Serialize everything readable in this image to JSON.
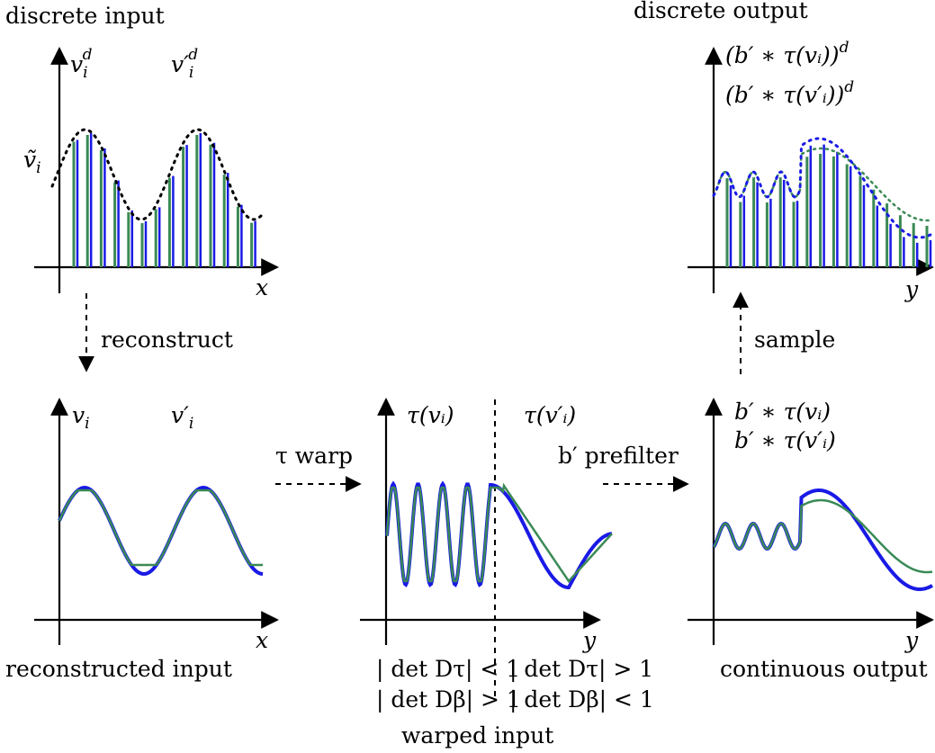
{
  "colors": {
    "green": "#3a8a55",
    "blue": "#1a1ae6",
    "black": "#000000"
  },
  "labels": {
    "discrete_input": "discrete input",
    "discrete_output": "discrete output",
    "reconstructed_input": "reconstructed input",
    "warped_input": "warped input",
    "continuous_output": "continuous output",
    "reconstruct": "reconstruct",
    "sample": "sample",
    "tau_warp": "τ warp",
    "prefilter": "b′ prefilter"
  },
  "math": {
    "vi_d": "v",
    "vi_d_sub": "i",
    "vi_d_sup": "d",
    "vpi_d": "v′",
    "vpi_d_sub": "i",
    "vpi_d_sup": "d",
    "vtilde": "ṽ",
    "vtilde_sub": "i",
    "vi": "v",
    "vi_sub": "i",
    "vpi": "v′",
    "vpi_sub": "i",
    "tau_vi": "τ(vᵢ)",
    "tau_vpi": "τ(v′ᵢ)",
    "b_tau_vi": "b′ ∗ τ(vᵢ)",
    "b_tau_vpi": "b′ ∗ τ(v′ᵢ)",
    "out_green": "(b′ ∗ τ(vᵢ))",
    "out_green_sup": "d",
    "out_blue": "(b′ ∗ τ(v′ᵢ))",
    "out_blue_sup": "d",
    "det_dtau_lt": "| det Dτ| < 1",
    "det_dtau_gt": "| det Dτ| > 1",
    "det_dbeta_gt": "| det Dβ| > 1",
    "det_dbeta_lt": "| det Dβ| < 1",
    "axis_x": "x",
    "axis_y": "y"
  }
}
